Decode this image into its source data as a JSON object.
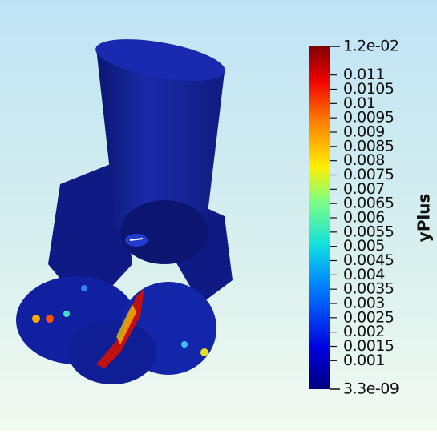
{
  "colorbar": {
    "title": "yPlus",
    "range": [
      {
        "value": 3.3e-09,
        "label": "3.3e-09"
      },
      {
        "value": 0.012,
        "label": "1.2e-02"
      }
    ],
    "ticks": [
      0.011,
      0.0105,
      0.01,
      0.0095,
      0.009,
      0.0085,
      0.008,
      0.0075,
      0.007,
      0.0065,
      0.006,
      0.0055,
      0.005,
      0.0045,
      0.004,
      0.0035,
      0.003,
      0.0025,
      0.002,
      0.0015,
      0.001
    ]
  }
}
